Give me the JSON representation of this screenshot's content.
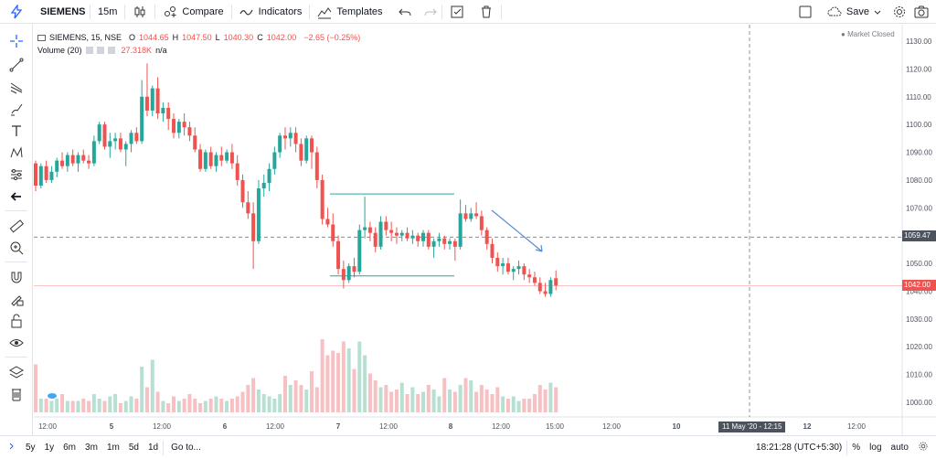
{
  "toolbar": {
    "symbol": "SIEMENS",
    "interval": "15m",
    "compare": "Compare",
    "indicators": "Indicators",
    "templates": "Templates",
    "save": "Save"
  },
  "legend": {
    "title": "SIEMENS, 15, NSE",
    "o_label": "O",
    "o": "1044.65",
    "h_label": "H",
    "h": "1047.50",
    "l_label": "L",
    "l": "1040.30",
    "c_label": "C",
    "c": "1042.00",
    "change": "−2.65 (−0.25%)",
    "volume_label": "Volume (20)",
    "volume_value": "27.318K",
    "volume_na": "n/a",
    "market_status": "Market Closed"
  },
  "price_boxes": {
    "crosshair": "1059.47",
    "last": "1042.00"
  },
  "crosshair_time": "11 May '20 - 12:15",
  "colors": {
    "up": "#26a69a",
    "down": "#ef5350",
    "vol_up": "#b8e0d2",
    "vol_down": "#f7c0c3"
  },
  "bottom": {
    "ranges": [
      "5y",
      "1y",
      "6m",
      "3m",
      "1m",
      "5d",
      "1d"
    ],
    "goto": "Go to...",
    "clock": "18:21:28 (UTC+5:30)",
    "pct": "%",
    "log": "log",
    "auto": "auto"
  },
  "chart_data": {
    "type": "candlestick",
    "y_ticks": [
      1130,
      1120,
      1110,
      1100,
      1090,
      1080,
      1070,
      1060,
      1050,
      1040,
      1030,
      1020,
      1010,
      1000
    ],
    "y_tick_labels": [
      "1130.00",
      "1120.00",
      "1110.00",
      "1100.00",
      "1090.00",
      "1080.00",
      "1070.00",
      "1060.00",
      "1050.00",
      "1040.00",
      "1030.00",
      "1020.00",
      "1010.00",
      "1000.00"
    ],
    "x_tick_labels": [
      "12:00",
      "5",
      "12:00",
      "6",
      "12:00",
      "7",
      "12:00",
      "8",
      "12:00",
      "15:00",
      "12:00",
      "10",
      "12:00",
      "12",
      "12:00"
    ],
    "candles": [
      [
        1086,
        1087,
        1076,
        1078
      ],
      [
        1078,
        1086,
        1077,
        1085
      ],
      [
        1085,
        1087,
        1079,
        1080
      ],
      [
        1080,
        1085,
        1079,
        1083
      ],
      [
        1083,
        1088,
        1081,
        1087
      ],
      [
        1087,
        1090,
        1084,
        1085
      ],
      [
        1085,
        1090,
        1083,
        1089
      ],
      [
        1089,
        1091,
        1085,
        1086
      ],
      [
        1086,
        1090,
        1083,
        1089
      ],
      [
        1089,
        1091,
        1086,
        1087
      ],
      [
        1087,
        1089,
        1084,
        1086
      ],
      [
        1086,
        1096,
        1085,
        1094
      ],
      [
        1094,
        1101,
        1093,
        1100
      ],
      [
        1100,
        1101,
        1091,
        1092
      ],
      [
        1092,
        1097,
        1088,
        1094
      ],
      [
        1094,
        1097,
        1091,
        1095
      ],
      [
        1095,
        1097,
        1090,
        1091
      ],
      [
        1091,
        1094,
        1085,
        1093
      ],
      [
        1093,
        1098,
        1090,
        1097
      ],
      [
        1097,
        1099,
        1093,
        1094
      ],
      [
        1094,
        1116,
        1093,
        1110
      ],
      [
        1110,
        1122,
        1103,
        1105
      ],
      [
        1105,
        1114,
        1103,
        1113
      ],
      [
        1113,
        1117,
        1102,
        1104
      ],
      [
        1104,
        1108,
        1101,
        1106
      ],
      [
        1106,
        1108,
        1098,
        1102
      ],
      [
        1102,
        1104,
        1095,
        1097
      ],
      [
        1097,
        1102,
        1095,
        1101
      ],
      [
        1101,
        1104,
        1096,
        1099
      ],
      [
        1099,
        1101,
        1094,
        1096
      ],
      [
        1096,
        1099,
        1090,
        1091
      ],
      [
        1091,
        1093,
        1083,
        1084
      ],
      [
        1084,
        1091,
        1083,
        1090
      ],
      [
        1090,
        1092,
        1084,
        1085
      ],
      [
        1085,
        1090,
        1083,
        1089
      ],
      [
        1089,
        1092,
        1085,
        1087
      ],
      [
        1087,
        1091,
        1086,
        1090
      ],
      [
        1090,
        1093,
        1084,
        1086
      ],
      [
        1086,
        1089,
        1078,
        1080
      ],
      [
        1080,
        1082,
        1070,
        1072
      ],
      [
        1072,
        1076,
        1066,
        1068
      ],
      [
        1068,
        1072,
        1048,
        1058
      ],
      [
        1058,
        1080,
        1057,
        1077
      ],
      [
        1077,
        1082,
        1074,
        1079
      ],
      [
        1079,
        1086,
        1076,
        1084
      ],
      [
        1084,
        1092,
        1082,
        1090
      ],
      [
        1090,
        1097,
        1088,
        1096
      ],
      [
        1096,
        1099,
        1091,
        1095
      ],
      [
        1095,
        1099,
        1092,
        1097
      ],
      [
        1097,
        1099,
        1090,
        1093
      ],
      [
        1093,
        1095,
        1085,
        1087
      ],
      [
        1087,
        1096,
        1086,
        1095
      ],
      [
        1095,
        1096,
        1084,
        1090
      ],
      [
        1090,
        1092,
        1077,
        1080
      ],
      [
        1080,
        1082,
        1064,
        1066
      ],
      [
        1066,
        1070,
        1063,
        1064
      ],
      [
        1064,
        1068,
        1056,
        1058
      ],
      [
        1058,
        1060,
        1046,
        1048
      ],
      [
        1048,
        1051,
        1041,
        1044
      ],
      [
        1044,
        1050,
        1043,
        1049
      ],
      [
        1049,
        1052,
        1045,
        1047
      ],
      [
        1047,
        1064,
        1046,
        1062
      ],
      [
        1062,
        1074,
        1059,
        1063
      ],
      [
        1063,
        1065,
        1058,
        1061
      ],
      [
        1061,
        1063,
        1054,
        1056
      ],
      [
        1056,
        1067,
        1055,
        1065
      ],
      [
        1065,
        1067,
        1060,
        1062
      ],
      [
        1062,
        1065,
        1058,
        1061
      ],
      [
        1061,
        1063,
        1057,
        1060
      ],
      [
        1060,
        1062,
        1058,
        1061
      ],
      [
        1061,
        1063,
        1058,
        1059
      ],
      [
        1059,
        1062,
        1057,
        1060
      ],
      [
        1060,
        1061,
        1056,
        1058
      ],
      [
        1058,
        1062,
        1056,
        1061
      ],
      [
        1061,
        1062,
        1055,
        1056
      ],
      [
        1056,
        1059,
        1052,
        1058
      ],
      [
        1058,
        1061,
        1056,
        1059
      ],
      [
        1059,
        1060,
        1055,
        1057
      ],
      [
        1057,
        1059,
        1055,
        1058
      ],
      [
        1058,
        1059,
        1051,
        1056
      ],
      [
        1056,
        1073,
        1055,
        1068
      ],
      [
        1068,
        1071,
        1065,
        1066
      ],
      [
        1066,
        1070,
        1065,
        1068
      ],
      [
        1068,
        1072,
        1066,
        1067
      ],
      [
        1067,
        1069,
        1060,
        1062
      ],
      [
        1062,
        1063,
        1055,
        1057
      ],
      [
        1057,
        1059,
        1050,
        1052
      ],
      [
        1052,
        1054,
        1047,
        1049
      ],
      [
        1049,
        1052,
        1046,
        1050
      ],
      [
        1050,
        1052,
        1046,
        1047
      ],
      [
        1047,
        1049,
        1044,
        1048
      ],
      [
        1048,
        1051,
        1046,
        1049
      ],
      [
        1049,
        1050,
        1044,
        1046
      ],
      [
        1046,
        1048,
        1043,
        1045
      ],
      [
        1045,
        1047,
        1042,
        1043
      ],
      [
        1043,
        1045,
        1039,
        1040
      ],
      [
        1040,
        1043,
        1038,
        1039
      ],
      [
        1039,
        1045,
        1038,
        1044
      ],
      [
        1044.65,
        1047.5,
        1040.3,
        1042
      ]
    ],
    "volumes": [
      21,
      6,
      6,
      5,
      6,
      8,
      5,
      5,
      5,
      6,
      5,
      8,
      6,
      5,
      7,
      8,
      4,
      5,
      7,
      6,
      20,
      11,
      23,
      9,
      5,
      4,
      7,
      5,
      6,
      8,
      6,
      4,
      5,
      6,
      7,
      6,
      5,
      6,
      7,
      9,
      12,
      15,
      10,
      8,
      7,
      6,
      8,
      16,
      12,
      14,
      12,
      10,
      18,
      11,
      32,
      25,
      27,
      26,
      31,
      28,
      19,
      31,
      25,
      17,
      14,
      11,
      12,
      9,
      10,
      13,
      8,
      11,
      8,
      9,
      12,
      10,
      7,
      15,
      10,
      9,
      12,
      15,
      14,
      9,
      12,
      10,
      8,
      11,
      7,
      6,
      7,
      5,
      6,
      6,
      8,
      12,
      10,
      13,
      11
    ]
  }
}
